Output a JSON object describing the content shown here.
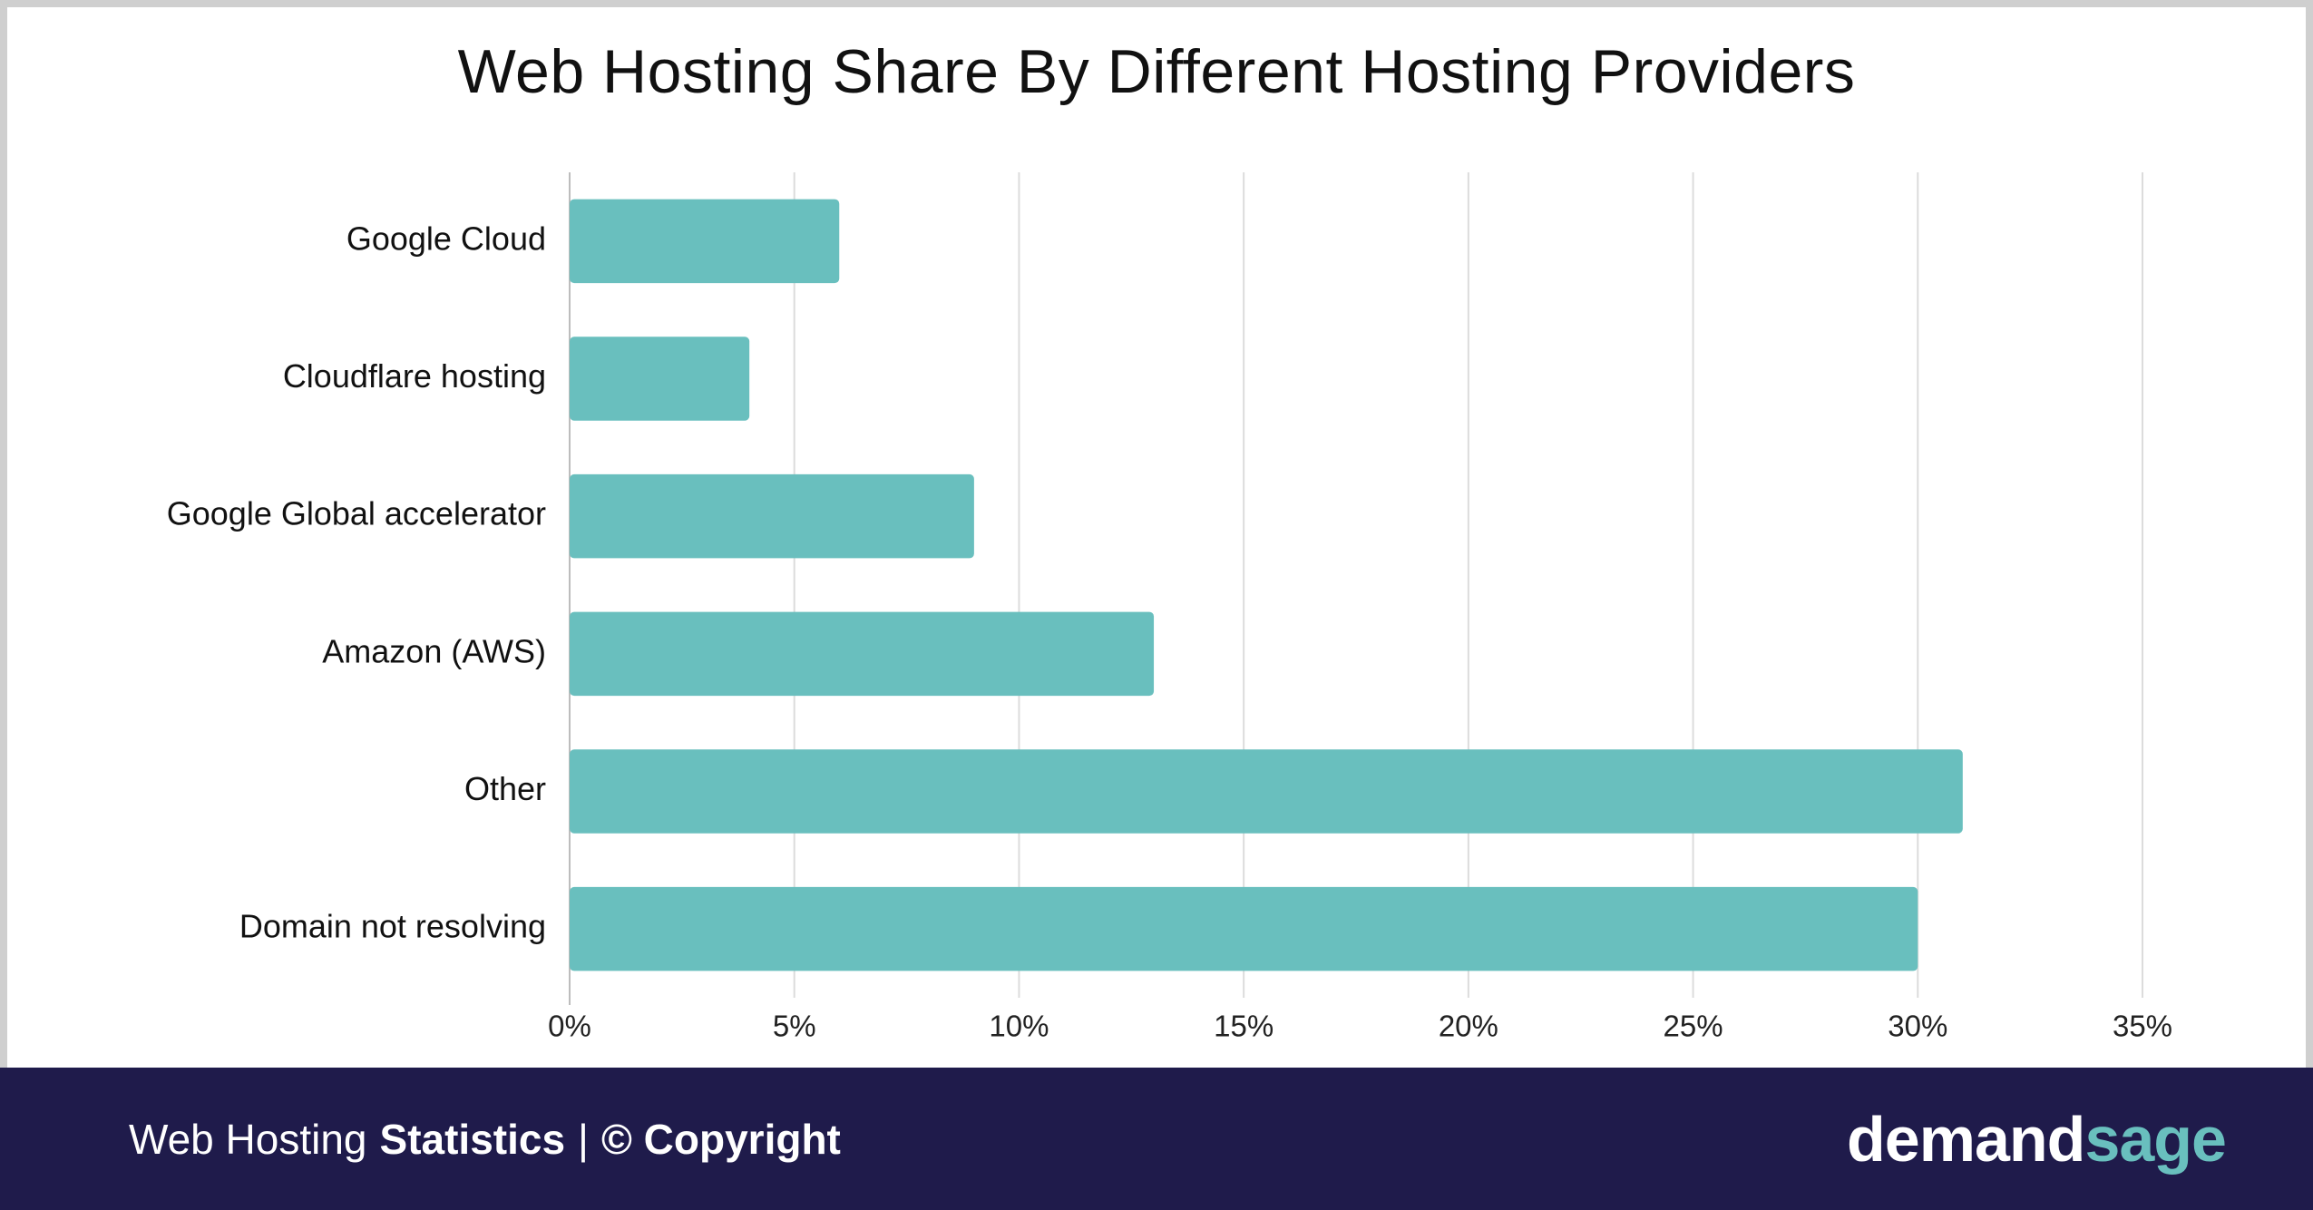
{
  "chart_data": {
    "type": "bar",
    "orientation": "horizontal",
    "title": "Web Hosting Share By Different Hosting Providers",
    "categories": [
      "Google Cloud",
      "Cloudflare hosting",
      "Google Global accelerator",
      "Amazon (AWS)",
      "Other",
      "Domain not resolving"
    ],
    "values": [
      6,
      4,
      9,
      13,
      31,
      30
    ],
    "xlim": [
      0,
      35
    ],
    "xticks": [
      0,
      5,
      10,
      15,
      20,
      25,
      30,
      35
    ],
    "xtick_labels": [
      "0%",
      "5%",
      "10%",
      "15%",
      "20%",
      "25%",
      "30%",
      "35%"
    ],
    "grid": true,
    "legend": "none",
    "bar_color": "#69bfbe"
  },
  "footer": {
    "left_light": "Web Hosting",
    "left_bold": "Statistics",
    "separator": "|",
    "copyright": "© Copyright",
    "logo_part1": "demand",
    "logo_part2": "sage"
  },
  "colors": {
    "footer_background": "#1f1b4b",
    "accent": "#69bfbe"
  }
}
